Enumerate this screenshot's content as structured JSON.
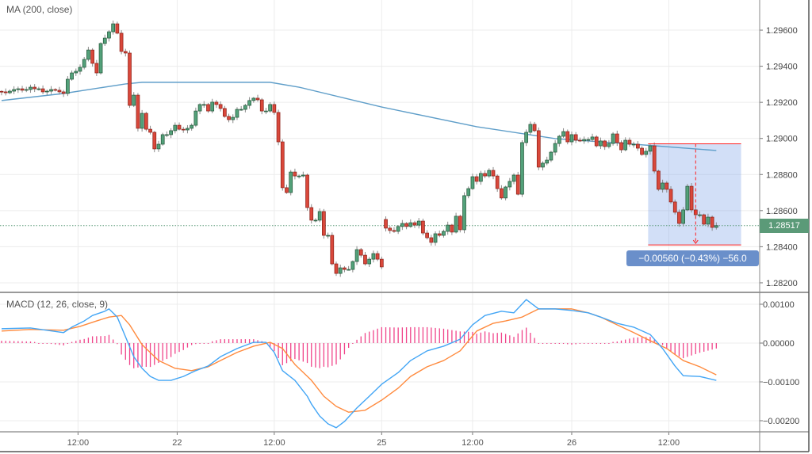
{
  "colors": {
    "up": "#53a17a",
    "up_border": "#225437",
    "down": "#d9483b",
    "down_border": "#8b1f17",
    "wick": "#8a8a8a",
    "ma": "#5f9ec9",
    "macd": "#42a5f5",
    "signal": "#ff8a3d",
    "histogram": "#f0448a",
    "last_price": "#5b9a78",
    "measure_box": "#6a96e6",
    "measure_line": "#ff2020",
    "grid": "#ececec"
  },
  "legends": {
    "price": "MA (200, close)",
    "macd": "MACD (12, 26, close, 9)"
  },
  "last_price_label": "1.28517",
  "measure_label": "−0.00560 (−0.43%) −56.0",
  "chart_data": [
    {
      "type": "candlestick",
      "title": "MA (200, close)",
      "ylim": [
        1.2815,
        1.2977
      ],
      "yticks": [
        "1.29600",
        "1.29400",
        "1.29200",
        "1.29000",
        "1.28800",
        "1.28600",
        "1.28400",
        "1.28200"
      ],
      "xticks": [
        {
          "index": 18.5,
          "label": "12:00"
        },
        {
          "index": 42.5,
          "label": "22"
        },
        {
          "index": 66,
          "label": "12:00"
        },
        {
          "index": 92,
          "label": "25"
        },
        {
          "index": 114,
          "label": "12:00"
        },
        {
          "index": 138,
          "label": "26"
        },
        {
          "index": 161.5,
          "label": "12:00"
        }
      ],
      "gap_open": {
        "index": 93,
        "value": 1.28551
      },
      "closes": [
        1.29258,
        1.29253,
        1.29262,
        1.29271,
        1.29275,
        1.29267,
        1.29271,
        1.29284,
        1.29275,
        1.29275,
        1.29258,
        1.29262,
        1.29271,
        1.29267,
        1.29258,
        1.29249,
        1.29328,
        1.29363,
        1.29372,
        1.29394,
        1.29438,
        1.2949,
        1.29416,
        1.29363,
        1.29526,
        1.29556,
        1.29591,
        1.29635,
        1.29583,
        1.29482,
        1.29473,
        1.29183,
        1.2924,
        1.29056,
        1.29139,
        1.29051,
        1.29034,
        1.28942,
        1.28968,
        1.29021,
        1.29021,
        1.29043,
        1.29073,
        1.29051,
        1.29047,
        1.29056,
        1.29073,
        1.29152,
        1.29188,
        1.29188,
        1.29152,
        1.29201,
        1.29188,
        1.29166,
        1.29122,
        1.29104,
        1.29117,
        1.29161,
        1.29161,
        1.29183,
        1.2921,
        1.29223,
        1.29214,
        1.29152,
        1.29152,
        1.29188,
        1.29144,
        1.28981,
        1.28727,
        1.287,
        1.28814,
        1.28792,
        1.28792,
        1.28797,
        1.28617,
        1.28547,
        1.28547,
        1.28595,
        1.28463,
        1.28463,
        1.28305,
        1.28252,
        1.28283,
        1.28274,
        1.28274,
        1.28318,
        1.28384,
        1.28353,
        1.28305,
        1.28331,
        1.28362,
        1.28331,
        1.28288,
        1.28503,
        1.2849,
        1.28485,
        1.28512,
        1.28529,
        1.28512,
        1.28533,
        1.2852,
        1.28542,
        1.28476,
        1.2845,
        1.28424,
        1.28472,
        1.28463,
        1.28485,
        1.2852,
        1.28481,
        1.28569,
        1.28494,
        1.28683,
        1.28722,
        1.28788,
        1.28762,
        1.28806,
        1.28792,
        1.28823,
        1.28792,
        1.28722,
        1.2867,
        1.28731,
        1.28762,
        1.28797,
        1.28691,
        1.28977,
        1.29034,
        1.29078,
        1.29043,
        1.28841,
        1.28863,
        1.2888,
        1.28924,
        1.28972,
        1.29012,
        1.29038,
        1.28981,
        1.29021,
        1.2899,
        1.28986,
        1.28994,
        1.28994,
        1.29008,
        1.28959,
        1.28986,
        1.28955,
        1.28972,
        1.29025,
        1.28977,
        1.28937,
        1.2899,
        1.28968,
        1.28968,
        1.28946,
        1.28911,
        1.28929,
        1.28959,
        1.28819,
        1.28718,
        1.28753,
        1.28718,
        1.28648,
        1.28591,
        1.28529,
        1.28604,
        1.28735,
        1.28604,
        1.28577,
        1.28577,
        1.28525,
        1.28564,
        1.28507,
        1.28517
      ],
      "ma200": [
        [
          0,
          1.2921
        ],
        [
          15,
          1.29249
        ],
        [
          30,
          1.29302
        ],
        [
          34,
          1.29311
        ],
        [
          65,
          1.29311
        ],
        [
          72,
          1.29284
        ],
        [
          92,
          1.29174
        ],
        [
          115,
          1.29065
        ],
        [
          134,
          1.28999
        ],
        [
          153,
          1.28968
        ],
        [
          173,
          1.28933
        ]
      ],
      "last_price": 1.28517,
      "measure": {
        "start_index": 156.5,
        "end_index": 179,
        "arrow_index": 168,
        "from": 1.2897,
        "to": 1.2841,
        "change": -0.0056,
        "percent": -0.43,
        "ticks": -56.0
      }
    },
    {
      "type": "line",
      "title": "MACD (12, 26, close, 9)",
      "ylim": [
        -0.0023,
        0.0011
      ],
      "yticks": [
        {
          "value": 0.001,
          "label": "0.00100"
        },
        {
          "value": 0,
          "label": "0.00000"
        },
        {
          "value": -0.001,
          "label": "−0.00100"
        },
        {
          "value": -0.002,
          "label": "−0.00200"
        }
      ],
      "series": [
        {
          "name": "MACD",
          "points": [
            [
              0,
              0.00037
            ],
            [
              7,
              0.00039
            ],
            [
              15,
              0.00027
            ],
            [
              17,
              0.00041
            ],
            [
              20,
              0.00057
            ],
            [
              22,
              0.00071
            ],
            [
              25,
              0.00082
            ],
            [
              26,
              0.00088
            ],
            [
              28,
              0.00067
            ],
            [
              30,
              0.00016
            ],
            [
              32,
              -0.00035
            ],
            [
              34,
              -0.00065
            ],
            [
              36,
              -0.00086
            ],
            [
              38,
              -0.00096
            ],
            [
              41,
              -0.00096
            ],
            [
              44,
              -0.00086
            ],
            [
              47,
              -0.00071
            ],
            [
              50,
              -0.00059
            ],
            [
              53,
              -0.00035
            ],
            [
              57,
              -0.00014
            ],
            [
              61,
              2e-05
            ],
            [
              64,
              2e-05
            ],
            [
              66,
              -0.00024
            ],
            [
              68,
              -0.00071
            ],
            [
              71,
              -0.00096
            ],
            [
              74,
              -0.00137
            ],
            [
              75,
              -0.00157
            ],
            [
              77,
              -0.00188
            ],
            [
              79,
              -0.00208
            ],
            [
              81,
              -0.00218
            ],
            [
              83,
              -0.00202
            ],
            [
              86,
              -0.00167
            ],
            [
              89,
              -0.00137
            ],
            [
              92,
              -0.00106
            ],
            [
              96,
              -0.00076
            ],
            [
              99,
              -0.00045
            ],
            [
              103,
              -0.0002
            ],
            [
              107,
              -8e-05
            ],
            [
              111,
              0.0001
            ],
            [
              114,
              0.00047
            ],
            [
              117,
              0.00071
            ],
            [
              121,
              0.00082
            ],
            [
              124,
              0.00078
            ],
            [
              127,
              0.00112
            ],
            [
              130,
              0.00088
            ],
            [
              134,
              0.00088
            ],
            [
              138,
              0.00084
            ],
            [
              142,
              0.00078
            ],
            [
              145,
              0.00067
            ],
            [
              149,
              0.00051
            ],
            [
              153,
              0.00041
            ],
            [
              157,
              0.00022
            ],
            [
              160,
              -0.00014
            ],
            [
              163,
              -0.00059
            ],
            [
              165,
              -0.00084
            ],
            [
              169,
              -0.00086
            ],
            [
              173,
              -0.00096
            ]
          ]
        },
        {
          "name": "Signal",
          "points": [
            [
              0,
              0.00031
            ],
            [
              7,
              0.00035
            ],
            [
              15,
              0.00033
            ],
            [
              19,
              0.00043
            ],
            [
              23,
              0.00057
            ],
            [
              26,
              0.00067
            ],
            [
              29,
              0.00071
            ],
            [
              31,
              0.00047
            ],
            [
              34,
              -4e-05
            ],
            [
              38,
              -0.00045
            ],
            [
              42,
              -0.00065
            ],
            [
              46,
              -0.00071
            ],
            [
              50,
              -0.00061
            ],
            [
              53,
              -0.00045
            ],
            [
              57,
              -0.00024
            ],
            [
              61,
              -8e-05
            ],
            [
              65,
              2e-05
            ],
            [
              68,
              -0.00014
            ],
            [
              71,
              -0.00055
            ],
            [
              75,
              -0.00096
            ],
            [
              78,
              -0.00137
            ],
            [
              81,
              -0.00163
            ],
            [
              84,
              -0.00178
            ],
            [
              88,
              -0.00173
            ],
            [
              92,
              -0.00147
            ],
            [
              96,
              -0.00116
            ],
            [
              99,
              -0.00086
            ],
            [
              103,
              -0.00061
            ],
            [
              107,
              -0.00045
            ],
            [
              111,
              -0.0002
            ],
            [
              115,
              0.00031
            ],
            [
              119,
              0.00051
            ],
            [
              122,
              0.00057
            ],
            [
              126,
              0.00067
            ],
            [
              130,
              0.00088
            ],
            [
              134,
              0.00088
            ],
            [
              138,
              0.00088
            ],
            [
              142,
              0.00078
            ],
            [
              145,
              0.00067
            ],
            [
              149,
              0.00047
            ],
            [
              153,
              0.00027
            ],
            [
              157,
              6e-05
            ],
            [
              161,
              -0.00014
            ],
            [
              165,
              -0.00045
            ],
            [
              169,
              -0.00061
            ],
            [
              173,
              -0.00082
            ]
          ]
        }
      ],
      "histogram": "MACD minus Signal"
    }
  ]
}
